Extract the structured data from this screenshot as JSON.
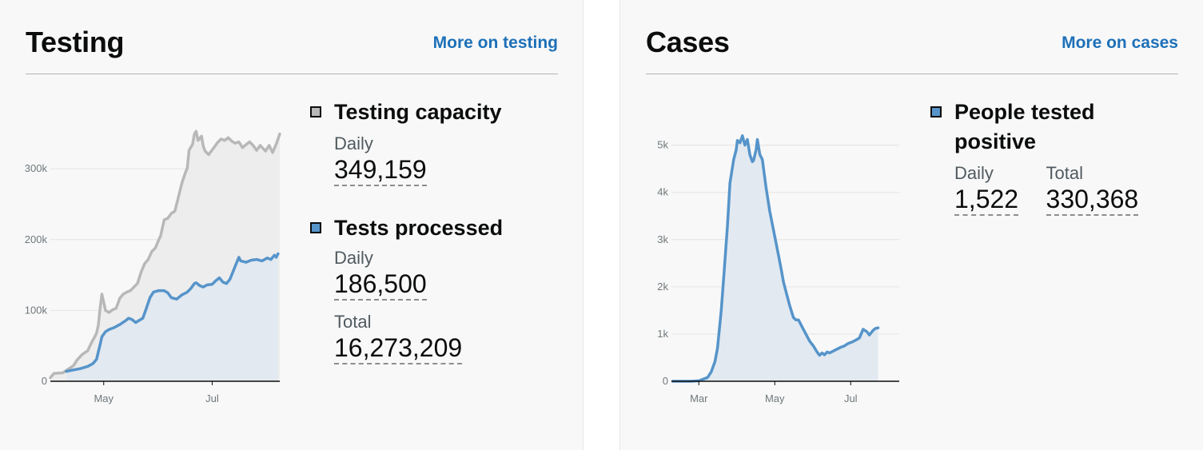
{
  "testing": {
    "title": "Testing",
    "link_label": "More on testing",
    "legend": [
      {
        "label": "Testing capacity",
        "swatch_color": "#b8b8b8",
        "metrics": [
          {
            "label": "Daily",
            "value": "349,159"
          }
        ]
      },
      {
        "label": "Tests processed",
        "swatch_color": "#5694ca",
        "metrics": [
          {
            "label": "Daily",
            "value": "186,500"
          },
          {
            "label": "Total",
            "value": "16,273,209"
          }
        ]
      }
    ],
    "chart_data": {
      "type": "line",
      "x_tick_labels": [
        "May",
        "Jul"
      ],
      "y_tick_labels": [
        "0",
        "100k",
        "200k",
        "300k"
      ],
      "xlim": [
        "2020-04-01",
        "2020-08-08"
      ],
      "ylim": [
        0,
        360000
      ],
      "grid": true,
      "area_fill": true,
      "series": [
        {
          "name": "Testing capacity",
          "color": "#b8b8b8",
          "points": [
            [
              "2020-04-01",
              5000
            ],
            [
              "2020-04-03",
              11000
            ],
            [
              "2020-04-08",
              12000
            ],
            [
              "2020-04-11",
              17000
            ],
            [
              "2020-04-14",
              22000
            ],
            [
              "2020-04-16",
              30000
            ],
            [
              "2020-04-19",
              38000
            ],
            [
              "2020-04-22",
              43000
            ],
            [
              "2020-04-24",
              54000
            ],
            [
              "2020-04-26",
              63000
            ],
            [
              "2020-04-27",
              68000
            ],
            [
              "2020-04-28",
              80000
            ],
            [
              "2020-04-29",
              104000
            ],
            [
              "2020-04-30",
              123000
            ],
            [
              "2020-05-02",
              100000
            ],
            [
              "2020-05-04",
              97000
            ],
            [
              "2020-05-06",
              101000
            ],
            [
              "2020-05-08",
              103000
            ],
            [
              "2020-05-10",
              117000
            ],
            [
              "2020-05-12",
              123000
            ],
            [
              "2020-05-14",
              126000
            ],
            [
              "2020-05-16",
              128000
            ],
            [
              "2020-05-18",
              133000
            ],
            [
              "2020-05-20",
              138000
            ],
            [
              "2020-05-22",
              154000
            ],
            [
              "2020-05-24",
              166000
            ],
            [
              "2020-05-26",
              172000
            ],
            [
              "2020-05-28",
              183000
            ],
            [
              "2020-05-30",
              188000
            ],
            [
              "2020-06-01",
              200000
            ],
            [
              "2020-06-02",
              205000
            ],
            [
              "2020-06-04",
              228000
            ],
            [
              "2020-06-06",
              230000
            ],
            [
              "2020-06-08",
              237000
            ],
            [
              "2020-06-10",
              240000
            ],
            [
              "2020-06-12",
              260000
            ],
            [
              "2020-06-14",
              280000
            ],
            [
              "2020-06-16",
              295000
            ],
            [
              "2020-06-17",
              301000
            ],
            [
              "2020-06-18",
              326000
            ],
            [
              "2020-06-20",
              335000
            ],
            [
              "2020-06-21",
              349000
            ],
            [
              "2020-06-22",
              353000
            ],
            [
              "2020-06-23",
              340000
            ],
            [
              "2020-06-25",
              346000
            ],
            [
              "2020-06-26",
              332000
            ],
            [
              "2020-06-27",
              325000
            ],
            [
              "2020-06-29",
              320000
            ],
            [
              "2020-07-02",
              330000
            ],
            [
              "2020-07-04",
              337000
            ],
            [
              "2020-07-06",
              342000
            ],
            [
              "2020-07-08",
              340000
            ],
            [
              "2020-07-10",
              344000
            ],
            [
              "2020-07-12",
              339000
            ],
            [
              "2020-07-14",
              336000
            ],
            [
              "2020-07-16",
              338000
            ],
            [
              "2020-07-18",
              330000
            ],
            [
              "2020-07-20",
              334000
            ],
            [
              "2020-07-22",
              338000
            ],
            [
              "2020-07-24",
              333000
            ],
            [
              "2020-07-26",
              326000
            ],
            [
              "2020-07-28",
              333000
            ],
            [
              "2020-07-31",
              325000
            ],
            [
              "2020-08-02",
              333000
            ],
            [
              "2020-08-04",
              323000
            ],
            [
              "2020-08-06",
              335000
            ],
            [
              "2020-08-08",
              349159
            ]
          ]
        },
        {
          "name": "Tests processed",
          "color": "#5694ca",
          "points": [
            [
              "2020-04-10",
              14000
            ],
            [
              "2020-04-14",
              16000
            ],
            [
              "2020-04-18",
              18000
            ],
            [
              "2020-04-22",
              21000
            ],
            [
              "2020-04-25",
              25000
            ],
            [
              "2020-04-27",
              31000
            ],
            [
              "2020-04-28",
              42000
            ],
            [
              "2020-04-29",
              52000
            ],
            [
              "2020-04-30",
              63000
            ],
            [
              "2020-05-02",
              70000
            ],
            [
              "2020-05-04",
              73000
            ],
            [
              "2020-05-07",
              76000
            ],
            [
              "2020-05-10",
              80000
            ],
            [
              "2020-05-13",
              85000
            ],
            [
              "2020-05-15",
              89000
            ],
            [
              "2020-05-17",
              87000
            ],
            [
              "2020-05-19",
              83000
            ],
            [
              "2020-05-21",
              86000
            ],
            [
              "2020-05-23",
              89000
            ],
            [
              "2020-05-25",
              103000
            ],
            [
              "2020-05-27",
              118000
            ],
            [
              "2020-05-29",
              126000
            ],
            [
              "2020-06-01",
              128000
            ],
            [
              "2020-06-04",
              128000
            ],
            [
              "2020-06-06",
              125000
            ],
            [
              "2020-06-08",
              118000
            ],
            [
              "2020-06-11",
              116000
            ],
            [
              "2020-06-14",
              122000
            ],
            [
              "2020-06-17",
              126000
            ],
            [
              "2020-06-19",
              131000
            ],
            [
              "2020-06-21",
              138000
            ],
            [
              "2020-06-22",
              139000
            ],
            [
              "2020-06-24",
              135000
            ],
            [
              "2020-06-26",
              133000
            ],
            [
              "2020-06-28",
              136000
            ],
            [
              "2020-07-01",
              137000
            ],
            [
              "2020-07-03",
              142000
            ],
            [
              "2020-07-05",
              146000
            ],
            [
              "2020-07-07",
              140000
            ],
            [
              "2020-07-09",
              138000
            ],
            [
              "2020-07-11",
              144000
            ],
            [
              "2020-07-14",
              163000
            ],
            [
              "2020-07-16",
              175000
            ],
            [
              "2020-07-17",
              170000
            ],
            [
              "2020-07-20",
              168000
            ],
            [
              "2020-07-23",
              171000
            ],
            [
              "2020-07-26",
              172000
            ],
            [
              "2020-07-29",
              170000
            ],
            [
              "2020-08-01",
              174000
            ],
            [
              "2020-08-03",
              172000
            ],
            [
              "2020-08-05",
              178000
            ],
            [
              "2020-08-06",
              175000
            ],
            [
              "2020-08-07",
              180000
            ]
          ]
        }
      ]
    }
  },
  "cases": {
    "title": "Cases",
    "link_label": "More on cases",
    "legend": [
      {
        "label_lines": [
          "People tested",
          "positive"
        ],
        "swatch_color": "#5694ca",
        "metrics": [
          {
            "label": "Daily",
            "value": "1,522"
          },
          {
            "label": "Total",
            "value": "330,368"
          }
        ]
      }
    ],
    "chart_data": {
      "type": "line",
      "x_tick_labels": [
        "Mar",
        "May",
        "Jul"
      ],
      "y_tick_labels": [
        "0",
        "1k",
        "2k",
        "3k",
        "4k",
        "5k"
      ],
      "xlim": [
        "2020-02-08",
        "2020-08-09"
      ],
      "ylim": [
        0,
        5400
      ],
      "grid": true,
      "area_fill": true,
      "series": [
        {
          "name": "People tested positive",
          "color": "#5694ca",
          "points": [
            [
              "2020-02-09",
              0
            ],
            [
              "2020-02-24",
              0
            ],
            [
              "2020-03-01",
              10
            ],
            [
              "2020-03-08",
              80
            ],
            [
              "2020-03-11",
              200
            ],
            [
              "2020-03-14",
              420
            ],
            [
              "2020-03-16",
              700
            ],
            [
              "2020-03-19",
              1500
            ],
            [
              "2020-03-21",
              2200
            ],
            [
              "2020-03-24",
              3300
            ],
            [
              "2020-03-26",
              4200
            ],
            [
              "2020-03-29",
              4700
            ],
            [
              "2020-03-31",
              4900
            ],
            [
              "2020-04-01",
              5100
            ],
            [
              "2020-04-03",
              5050
            ],
            [
              "2020-04-05",
              5200
            ],
            [
              "2020-04-07",
              5000
            ],
            [
              "2020-04-09",
              5120
            ],
            [
              "2020-04-11",
              4800
            ],
            [
              "2020-04-13",
              4650
            ],
            [
              "2020-04-14",
              4680
            ],
            [
              "2020-04-16",
              4900
            ],
            [
              "2020-04-17",
              5120
            ],
            [
              "2020-04-19",
              4800
            ],
            [
              "2020-04-21",
              4700
            ],
            [
              "2020-04-24",
              4100
            ],
            [
              "2020-04-27",
              3600
            ],
            [
              "2020-04-30",
              3200
            ],
            [
              "2020-05-03",
              2800
            ],
            [
              "2020-05-06",
              2400
            ],
            [
              "2020-05-08",
              2100
            ],
            [
              "2020-05-10",
              1900
            ],
            [
              "2020-05-13",
              1600
            ],
            [
              "2020-05-16",
              1350
            ],
            [
              "2020-05-18",
              1300
            ],
            [
              "2020-05-20",
              1300
            ],
            [
              "2020-05-23",
              1150
            ],
            [
              "2020-05-26",
              1000
            ],
            [
              "2020-05-29",
              850
            ],
            [
              "2020-06-01",
              750
            ],
            [
              "2020-06-04",
              620
            ],
            [
              "2020-06-06",
              550
            ],
            [
              "2020-06-08",
              600
            ],
            [
              "2020-06-10",
              560
            ],
            [
              "2020-06-12",
              620
            ],
            [
              "2020-06-14",
              600
            ],
            [
              "2020-06-17",
              640
            ],
            [
              "2020-06-20",
              680
            ],
            [
              "2020-06-23",
              720
            ],
            [
              "2020-06-26",
              750
            ],
            [
              "2020-06-29",
              800
            ],
            [
              "2020-07-02",
              830
            ],
            [
              "2020-07-05",
              870
            ],
            [
              "2020-07-08",
              920
            ],
            [
              "2020-07-11",
              1100
            ],
            [
              "2020-07-14",
              1050
            ],
            [
              "2020-07-16",
              980
            ],
            [
              "2020-07-19",
              1080
            ],
            [
              "2020-07-21",
              1120
            ],
            [
              "2020-07-23",
              1130
            ]
          ]
        }
      ]
    }
  }
}
